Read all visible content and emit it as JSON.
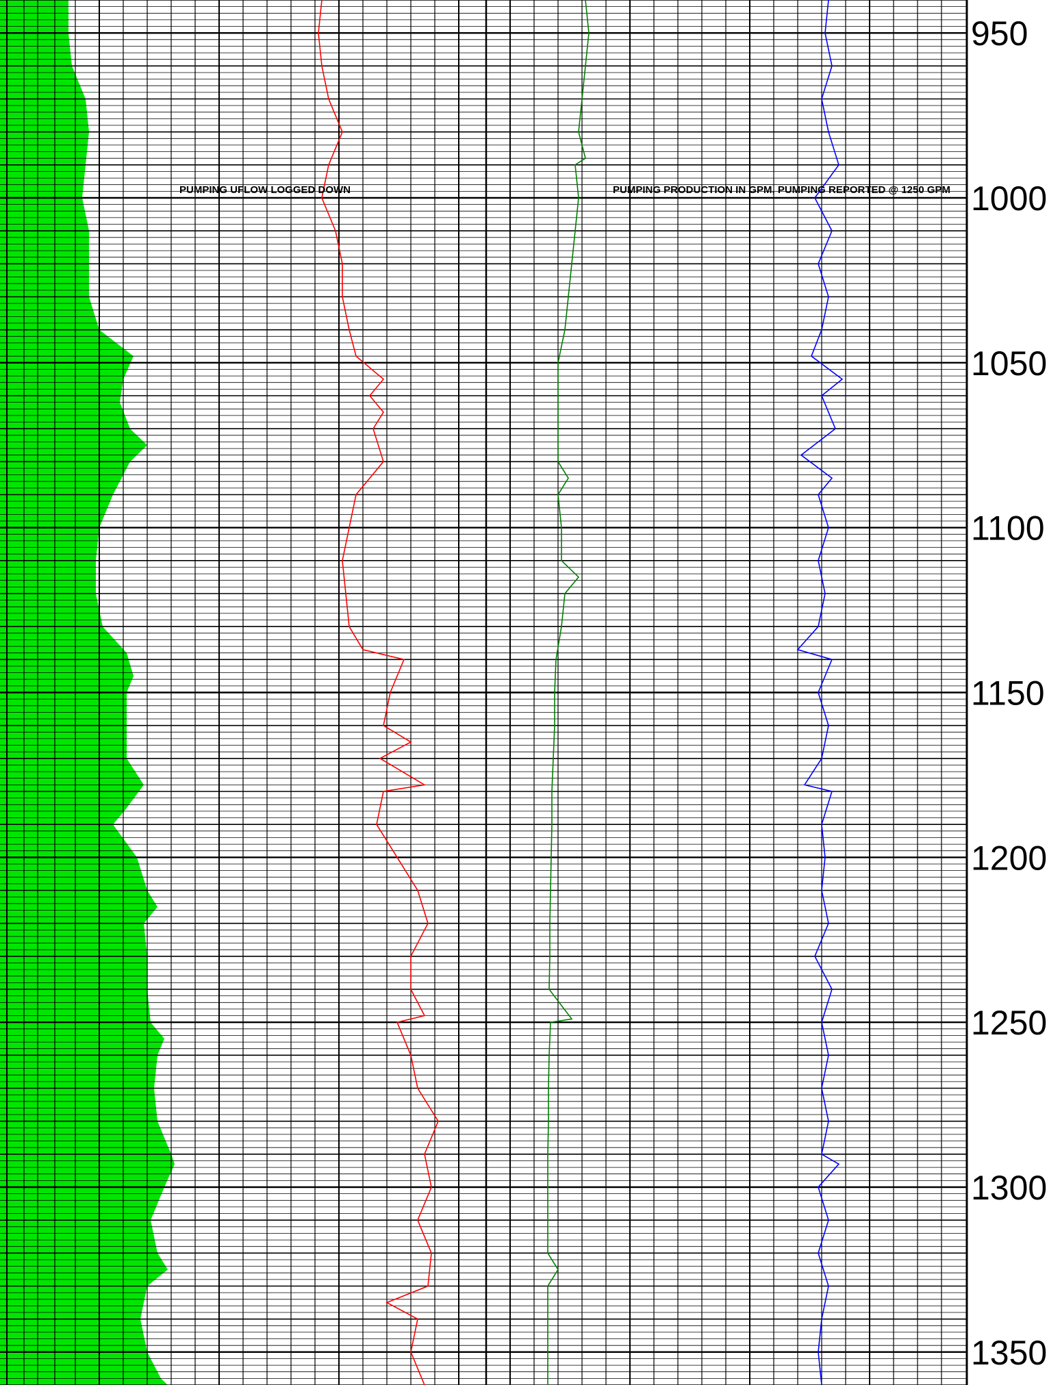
{
  "chart_data": {
    "type": "line",
    "title": "",
    "xlabel": "",
    "ylabel": "",
    "depth_range": [
      940,
      1360
    ],
    "depth_ticks": [
      "950",
      "1000",
      "1050",
      "1100",
      "1150",
      "1200",
      "1250",
      "1300",
      "1350"
    ],
    "annotations": [
      "PUMPING UFLOW LOGGED DOWN",
      "PUMPING PRODUCTION IN GPM,  PUMPING REPORTED @ 1250 GPM"
    ],
    "colors": {
      "fill": "#00e600",
      "red": "#ff0000",
      "green": "#008000",
      "blue": "#0000ff",
      "grid": "#000000"
    },
    "series": [
      {
        "key": "green-fill",
        "type": "area",
        "depths": [
          940,
          950,
          960,
          970,
          980,
          990,
          1000,
          1010,
          1020,
          1030,
          1040,
          1048,
          1055,
          1062,
          1070,
          1075,
          1080,
          1090,
          1100,
          1110,
          1120,
          1130,
          1138,
          1145,
          1150,
          1160,
          1170,
          1178,
          1185,
          1190,
          1200,
          1210,
          1215,
          1220,
          1230,
          1240,
          1250,
          1255,
          1260,
          1270,
          1280,
          1290,
          1293,
          1300,
          1310,
          1320,
          1325,
          1330,
          1340,
          1350,
          1358,
          1360
        ],
        "values": [
          100,
          100,
          105,
          125,
          130,
          125,
          120,
          130,
          130,
          130,
          145,
          195,
          180,
          175,
          190,
          215,
          190,
          165,
          145,
          140,
          140,
          150,
          185,
          195,
          185,
          185,
          185,
          210,
          185,
          165,
          200,
          215,
          230,
          210,
          215,
          215,
          220,
          240,
          230,
          225,
          230,
          250,
          255,
          240,
          220,
          230,
          245,
          215,
          205,
          215,
          235,
          245
        ]
      },
      {
        "key": "red-curve",
        "type": "line",
        "depths": [
          940,
          950,
          960,
          970,
          980,
          990,
          1000,
          1010,
          1020,
          1030,
          1040,
          1048,
          1055,
          1060,
          1065,
          1070,
          1080,
          1090,
          1100,
          1110,
          1120,
          1130,
          1137,
          1140,
          1150,
          1160,
          1165,
          1170,
          1178,
          1180,
          1190,
          1200,
          1210,
          1220,
          1230,
          1240,
          1248,
          1250,
          1260,
          1270,
          1280,
          1290,
          1300,
          1310,
          1320,
          1330,
          1335,
          1340,
          1350,
          1360
        ],
        "values": [
          470,
          465,
          470,
          480,
          500,
          480,
          470,
          490,
          500,
          500,
          510,
          520,
          560,
          540,
          560,
          545,
          560,
          520,
          510,
          500,
          505,
          510,
          530,
          590,
          570,
          560,
          600,
          555,
          620,
          560,
          550,
          580,
          610,
          625,
          600,
          600,
          620,
          580,
          600,
          610,
          640,
          620,
          630,
          610,
          630,
          625,
          565,
          610,
          600,
          620
        ]
      },
      {
        "key": "green-curve",
        "type": "line",
        "depths": [
          940,
          950,
          960,
          970,
          980,
          988,
          990,
          1000,
          1010,
          1020,
          1030,
          1040,
          1050,
          1060,
          1070,
          1080,
          1085,
          1090,
          1100,
          1110,
          1115,
          1120,
          1130,
          1140,
          1150,
          1160,
          1170,
          1180,
          1190,
          1200,
          1210,
          1220,
          1230,
          1240,
          1249,
          1250,
          1260,
          1270,
          1280,
          1290,
          1300,
          1310,
          1320,
          1325,
          1330,
          1340,
          1350,
          1360
        ],
        "values": [
          855,
          860,
          855,
          850,
          845,
          855,
          840,
          845,
          840,
          835,
          830,
          825,
          815,
          815,
          815,
          815,
          830,
          815,
          820,
          820,
          845,
          825,
          820,
          812,
          810,
          810,
          808,
          806,
          806,
          805,
          804,
          803,
          803,
          802,
          835,
          804,
          802,
          801,
          801,
          800,
          800,
          800,
          800,
          815,
          800,
          800,
          800,
          800
        ]
      },
      {
        "key": "blue-curve",
        "type": "line",
        "depths": [
          940,
          950,
          960,
          970,
          980,
          990,
          1000,
          1010,
          1020,
          1030,
          1040,
          1048,
          1055,
          1060,
          1070,
          1078,
          1085,
          1090,
          1100,
          1110,
          1120,
          1130,
          1137,
          1140,
          1150,
          1160,
          1170,
          1178,
          1180,
          1190,
          1200,
          1210,
          1220,
          1230,
          1240,
          1250,
          1260,
          1270,
          1280,
          1290,
          1293,
          1300,
          1310,
          1320,
          1330,
          1340,
          1350,
          1360
        ],
        "values": [
          1210,
          1205,
          1215,
          1200,
          1210,
          1225,
          1190,
          1215,
          1195,
          1210,
          1200,
          1185,
          1230,
          1200,
          1220,
          1170,
          1215,
          1195,
          1210,
          1195,
          1205,
          1195,
          1165,
          1215,
          1195,
          1210,
          1200,
          1175,
          1215,
          1200,
          1205,
          1200,
          1210,
          1190,
          1215,
          1200,
          1210,
          1200,
          1210,
          1200,
          1225,
          1195,
          1210,
          1195,
          1210,
          1200,
          1195,
          1200
        ]
      }
    ]
  }
}
